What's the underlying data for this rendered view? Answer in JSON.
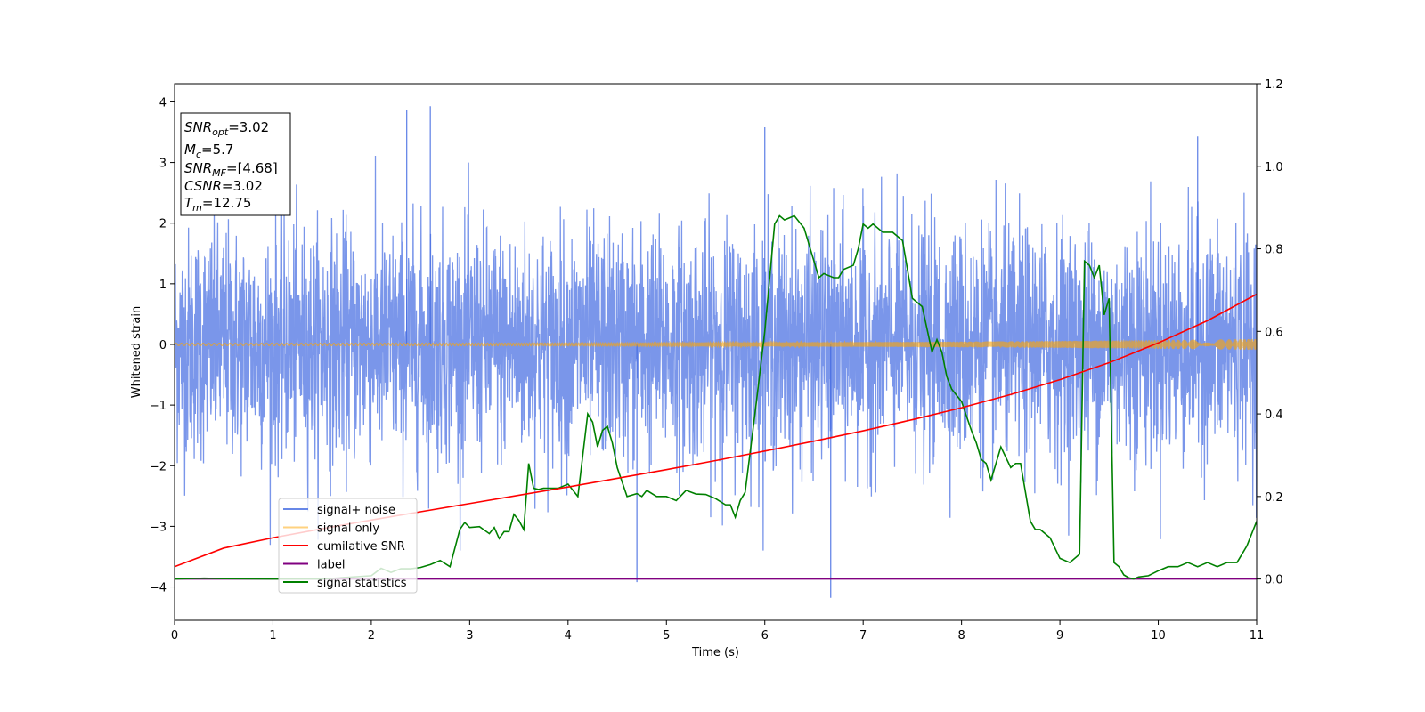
{
  "chart_data": {
    "type": "line",
    "title": "",
    "xlabel": "Time (s)",
    "ylabel_left": "Whitened strain",
    "ylabel_right": "",
    "xlim": [
      0,
      11
    ],
    "ylim_left": [
      -4.55,
      4.3
    ],
    "ylim_right": [
      -0.1,
      1.2
    ],
    "x_ticks": [
      0,
      1,
      2,
      3,
      4,
      5,
      6,
      7,
      8,
      9,
      10,
      11
    ],
    "y_ticks_left": [
      -4,
      -3,
      -2,
      -1,
      0,
      1,
      2,
      3,
      4
    ],
    "y_ticks_right": [
      0.0,
      0.2,
      0.4,
      0.6,
      0.8,
      1.0,
      1.2
    ],
    "grid": false,
    "legend_position": "lower-left",
    "legend": [
      {
        "name": "signal+ noise",
        "color": "#4169e1"
      },
      {
        "name": "signal only",
        "color": "#ffa500"
      },
      {
        "name": "cumilative SNR",
        "color": "#ff0000"
      },
      {
        "name": "label",
        "color": "#800080"
      },
      {
        "name": "signal statistics",
        "color": "#008000"
      }
    ],
    "info_box": {
      "lines": [
        {
          "label": "SNR",
          "sub": "opt",
          "value": "=3.02"
        },
        {
          "label": "M",
          "sub": "c",
          "value": "=5.7"
        },
        {
          "label": "SNR",
          "sub": "MF",
          "value": "=[4.68]"
        },
        {
          "label": "CSNR",
          "sub": "",
          "value": "=3.02"
        },
        {
          "label": "T",
          "sub": "m",
          "value": "=12.75"
        }
      ]
    },
    "series": [
      {
        "name": "signal+ noise",
        "axis": "left",
        "color": "#4169e1",
        "description_points": "dense noise, std about 1, peaks near ±3.9",
        "std": 1.0,
        "sample_rate_display": 120,
        "peaks": [
          [
            2.36,
            3.86
          ],
          [
            2.6,
            3.93
          ],
          [
            6.67,
            -4.18
          ],
          [
            4.7,
            -3.92
          ],
          [
            10.4,
            3.43
          ],
          [
            6.0,
            3.58
          ]
        ]
      },
      {
        "name": "signal only",
        "axis": "left",
        "color": "#ffa500",
        "amplitude_start": 0.02,
        "amplitude_end": 0.09
      },
      {
        "name": "cumilative SNR",
        "axis": "right",
        "color": "#ff0000",
        "x": [
          0,
          0.5,
          1,
          1.5,
          2,
          2.5,
          3,
          3.5,
          4,
          4.5,
          5,
          5.5,
          6,
          6.5,
          7,
          7.5,
          8,
          8.5,
          9,
          9.5,
          10,
          10.5,
          11
        ],
        "y": [
          0.03,
          0.075,
          0.1,
          0.122,
          0.143,
          0.163,
          0.183,
          0.203,
          0.223,
          0.244,
          0.265,
          0.287,
          0.31,
          0.334,
          0.359,
          0.386,
          0.415,
          0.447,
          0.483,
          0.524,
          0.572,
          0.626,
          0.69
        ]
      },
      {
        "name": "label",
        "axis": "right",
        "color": "#800080",
        "x": [
          0,
          11
        ],
        "y": [
          0.0,
          0.0
        ]
      },
      {
        "name": "signal statistics",
        "axis": "right",
        "color": "#008000",
        "x": [
          0,
          0.3,
          0.5,
          1,
          1.5,
          2,
          2.1,
          2.2,
          2.3,
          2.4,
          2.5,
          2.6,
          2.7,
          2.8,
          2.9,
          2.95,
          3.0,
          3.1,
          3.2,
          3.25,
          3.3,
          3.35,
          3.4,
          3.45,
          3.5,
          3.55,
          3.6,
          3.65,
          3.7,
          3.75,
          3.8,
          3.9,
          4.0,
          4.1,
          4.2,
          4.25,
          4.3,
          4.35,
          4.4,
          4.45,
          4.5,
          4.6,
          4.7,
          4.75,
          4.8,
          4.9,
          5.0,
          5.1,
          5.2,
          5.3,
          5.4,
          5.5,
          5.6,
          5.65,
          5.7,
          5.75,
          5.8,
          5.9,
          6.0,
          6.1,
          6.15,
          6.2,
          6.3,
          6.4,
          6.5,
          6.55,
          6.6,
          6.7,
          6.75,
          6.8,
          6.9,
          6.95,
          7.0,
          7.05,
          7.1,
          7.2,
          7.3,
          7.4,
          7.5,
          7.6,
          7.7,
          7.75,
          7.8,
          7.85,
          7.9,
          8.0,
          8.1,
          8.15,
          8.2,
          8.25,
          8.3,
          8.4,
          8.5,
          8.55,
          8.6,
          8.7,
          8.75,
          8.8,
          8.9,
          9.0,
          9.1,
          9.2,
          9.25,
          9.3,
          9.35,
          9.4,
          9.45,
          9.5,
          9.55,
          9.6,
          9.65,
          9.7,
          9.75,
          9.8,
          9.9,
          10.0,
          10.1,
          10.2,
          10.3,
          10.4,
          10.5,
          10.6,
          10.7,
          10.8,
          10.9,
          11.0
        ],
        "y": [
          0.0,
          0.002,
          0.001,
          0.0,
          0.0,
          0.008,
          0.026,
          0.016,
          0.025,
          0.025,
          0.028,
          0.035,
          0.045,
          0.03,
          0.12,
          0.137,
          0.125,
          0.127,
          0.11,
          0.125,
          0.098,
          0.115,
          0.115,
          0.157,
          0.142,
          0.12,
          0.28,
          0.22,
          0.217,
          0.22,
          0.22,
          0.22,
          0.23,
          0.2,
          0.4,
          0.38,
          0.32,
          0.36,
          0.37,
          0.33,
          0.27,
          0.2,
          0.207,
          0.2,
          0.215,
          0.2,
          0.2,
          0.19,
          0.215,
          0.206,
          0.205,
          0.195,
          0.18,
          0.18,
          0.15,
          0.19,
          0.21,
          0.4,
          0.6,
          0.86,
          0.88,
          0.87,
          0.88,
          0.85,
          0.77,
          0.73,
          0.74,
          0.73,
          0.73,
          0.75,
          0.76,
          0.8,
          0.86,
          0.85,
          0.86,
          0.84,
          0.84,
          0.82,
          0.68,
          0.66,
          0.55,
          0.58,
          0.55,
          0.49,
          0.46,
          0.43,
          0.36,
          0.33,
          0.29,
          0.28,
          0.24,
          0.32,
          0.27,
          0.28,
          0.28,
          0.14,
          0.12,
          0.12,
          0.1,
          0.05,
          0.04,
          0.06,
          0.77,
          0.76,
          0.73,
          0.76,
          0.64,
          0.68,
          0.04,
          0.03,
          0.01,
          0.003,
          0.0,
          0.005,
          0.008,
          0.02,
          0.03,
          0.03,
          0.04,
          0.03,
          0.04,
          0.03,
          0.04,
          0.04,
          0.08,
          0.14
        ]
      }
    ]
  }
}
